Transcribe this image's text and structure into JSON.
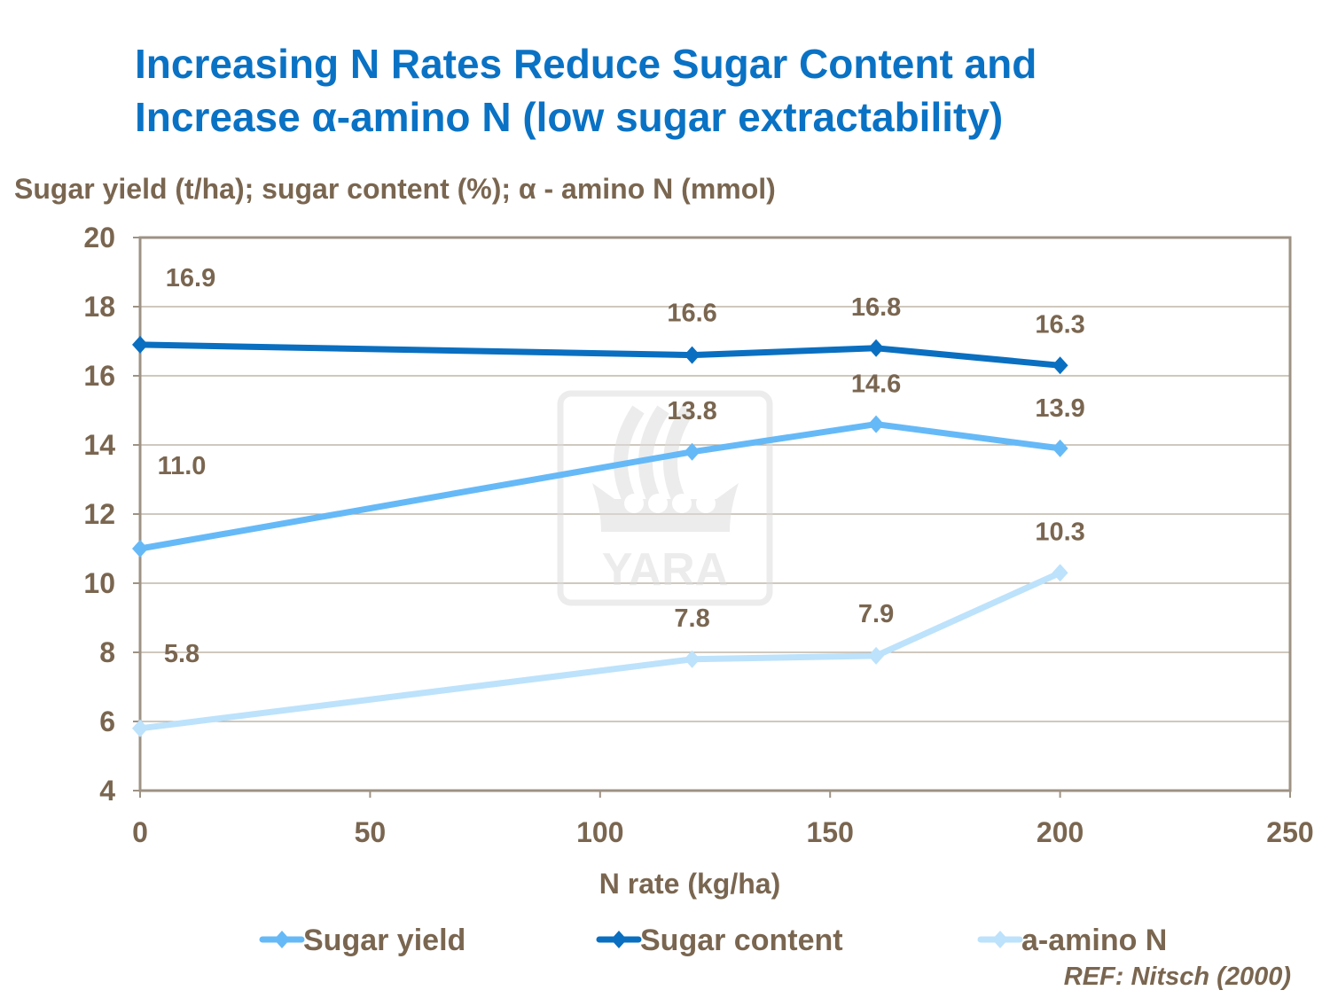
{
  "chart_data": {
    "type": "line",
    "title_line1": "Increasing N Rates Reduce Sugar Content and",
    "title_line2": "Increase α-amino N (low sugar extractability)",
    "ylabel": "Sugar yield (t/ha); sugar content (%); α - amino N (mmol)",
    "xlabel": "N rate (kg/ha)",
    "xlim": [
      0,
      250
    ],
    "ylim": [
      4,
      20
    ],
    "xticks": [
      "0",
      "50",
      "100",
      "150",
      "200",
      "250"
    ],
    "yticks": [
      "4",
      "6",
      "8",
      "10",
      "12",
      "14",
      "16",
      "18",
      "20"
    ],
    "grid": "horizontal",
    "legend_position": "bottom",
    "x": [
      0,
      120,
      160,
      200
    ],
    "series": [
      {
        "name": "Sugar yield",
        "values": [
          11.0,
          13.8,
          14.6,
          13.9
        ],
        "labels": [
          "11.0",
          "13.8",
          "14.6",
          "13.9"
        ],
        "color": "#66b9f7"
      },
      {
        "name": "Sugar content",
        "values": [
          16.9,
          16.6,
          16.8,
          16.3
        ],
        "labels": [
          "16.9",
          "16.6",
          "16.8",
          "16.3"
        ],
        "color": "#0a6fc0"
      },
      {
        "name": "a-amino N",
        "values": [
          5.8,
          7.8,
          7.9,
          10.3
        ],
        "labels": [
          "5.8",
          "7.8",
          "7.9",
          "10.3"
        ],
        "color": "#bde2fb"
      }
    ],
    "watermark": "YARA",
    "reference": "REF: Nitsch (2000)"
  }
}
